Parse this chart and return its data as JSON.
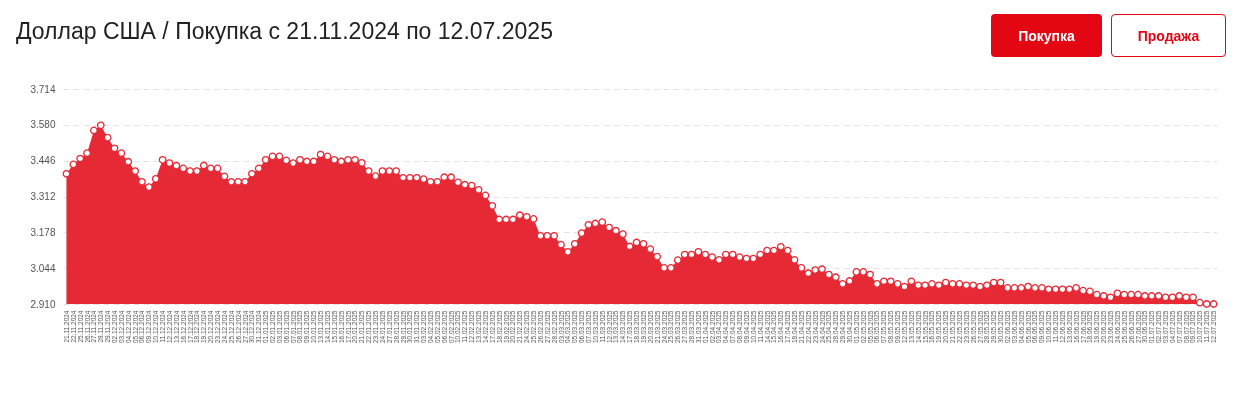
{
  "chart_data": {
    "type": "area",
    "title": "Доллар США / Покупка с 21.11.2024 по 12.07.2025",
    "annotations": [
      "Покупка",
      "Продажа"
    ],
    "categories": [
      "21.11.2024",
      "22.11.2024",
      "25.11.2024",
      "26.11.2024",
      "27.11.2024",
      "28.11.2024",
      "29.11.2024",
      "02.12.2024",
      "03.12.2024",
      "04.12.2024",
      "05.12.2024",
      "06.12.2024",
      "09.12.2024",
      "10.12.2024",
      "11.12.2024",
      "12.12.2024",
      "13.12.2024",
      "16.12.2024",
      "17.12.2024",
      "18.12.2024",
      "19.12.2024",
      "20.12.2024",
      "23.12.2024",
      "24.12.2024",
      "25.12.2024",
      "26.12.2024",
      "27.12.2024",
      "30.12.2024",
      "31.12.2024",
      "01.01.2025",
      "02.01.2025",
      "03.01.2025",
      "06.01.2025",
      "07.01.2025",
      "08.01.2025",
      "09.01.2025",
      "10.01.2025",
      "13.01.2025",
      "14.01.2025",
      "15.01.2025",
      "16.01.2025",
      "17.01.2025",
      "20.01.2025",
      "21.01.2025",
      "22.01.2025",
      "23.01.2025",
      "24.01.2025",
      "27.01.2025",
      "28.01.2025",
      "29.01.2025",
      "30.01.2025",
      "31.01.2025",
      "03.02.2025",
      "04.02.2025",
      "05.02.2025",
      "06.02.2025",
      "07.02.2025",
      "10.02.2025",
      "11.02.2025",
      "12.02.2025",
      "13.02.2025",
      "14.02.2025",
      "17.02.2025",
      "18.02.2025",
      "19.02.2025",
      "20.02.2025",
      "21.02.2025",
      "24.02.2025",
      "25.02.2025",
      "26.02.2025",
      "27.02.2025",
      "28.02.2025",
      "03.03.2025",
      "04.03.2025",
      "05.03.2025",
      "06.03.2025",
      "07.03.2025",
      "10.03.2025",
      "11.03.2025",
      "12.03.2025",
      "13.03.2025",
      "14.03.2025",
      "17.03.2025",
      "18.03.2025",
      "19.03.2025",
      "20.03.2025",
      "21.03.2025",
      "24.03.2025",
      "25.03.2025",
      "26.03.2025",
      "27.03.2025",
      "28.03.2025",
      "31.03.2025",
      "01.04.2025",
      "02.04.2025",
      "03.04.2025",
      "04.04.2025",
      "07.04.2025",
      "08.04.2025",
      "09.04.2025",
      "10.04.2025",
      "11.04.2025",
      "14.04.2025",
      "15.04.2025",
      "16.04.2025",
      "17.04.2025",
      "18.04.2025",
      "21.04.2025",
      "22.04.2025",
      "23.04.2025",
      "24.04.2025",
      "25.04.2025",
      "28.04.2025",
      "29.04.2025",
      "30.04.2025",
      "01.05.2025",
      "02.05.2025",
      "05.05.2025",
      "06.05.2025",
      "07.05.2025",
      "08.05.2025",
      "09.05.2025",
      "12.05.2025",
      "13.05.2025",
      "14.05.2025",
      "15.05.2025",
      "16.05.2025",
      "19.05.2025",
      "20.05.2025",
      "21.05.2025",
      "22.05.2025",
      "23.05.2025",
      "26.05.2025",
      "27.05.2025",
      "28.05.2025",
      "29.05.2025",
      "30.05.2025",
      "02.06.2025",
      "03.06.2025",
      "04.06.2025",
      "05.06.2025",
      "06.06.2025",
      "09.06.2025",
      "10.06.2025",
      "11.06.2025",
      "12.06.2025",
      "13.06.2025",
      "16.06.2025",
      "17.06.2025",
      "18.06.2025",
      "19.06.2025",
      "20.06.2025",
      "23.06.2025",
      "24.06.2025",
      "25.06.2025",
      "26.06.2025",
      "27.06.2025",
      "30.06.2025",
      "01.07.2025",
      "02.07.2025",
      "03.07.2025",
      "04.07.2025",
      "07.07.2025",
      "08.07.2025",
      "09.07.2025",
      "10.07.2025",
      "11.07.2025",
      "12.07.2025"
    ],
    "series": [
      {
        "color": "#e52935",
        "values": [
          3.397,
          3.432,
          3.454,
          3.474,
          3.559,
          3.578,
          3.532,
          3.492,
          3.474,
          3.442,
          3.407,
          3.367,
          3.347,
          3.378,
          3.449,
          3.437,
          3.427,
          3.417,
          3.407,
          3.407,
          3.428,
          3.417,
          3.417,
          3.387,
          3.367,
          3.367,
          3.367,
          3.397,
          3.417,
          3.449,
          3.462,
          3.462,
          3.447,
          3.437,
          3.449,
          3.443,
          3.443,
          3.469,
          3.462,
          3.449,
          3.443,
          3.449,
          3.449,
          3.438,
          3.407,
          3.388,
          3.407,
          3.407,
          3.407,
          3.382,
          3.382,
          3.382,
          3.377,
          3.367,
          3.367,
          3.384,
          3.384,
          3.365,
          3.356,
          3.353,
          3.337,
          3.316,
          3.277,
          3.226,
          3.226,
          3.226,
          3.242,
          3.236,
          3.228,
          3.165,
          3.165,
          3.165,
          3.132,
          3.105,
          3.135,
          3.175,
          3.206,
          3.211,
          3.216,
          3.196,
          3.184,
          3.171,
          3.125,
          3.14,
          3.135,
          3.115,
          3.087,
          3.045,
          3.045,
          3.074,
          3.095,
          3.095,
          3.105,
          3.095,
          3.085,
          3.075,
          3.095,
          3.095,
          3.085,
          3.08,
          3.08,
          3.095,
          3.11,
          3.11,
          3.124,
          3.11,
          3.075,
          3.045,
          3.025,
          3.037,
          3.04,
          3.02,
          3.01,
          2.985,
          2.996,
          3.03,
          3.03,
          3.02,
          2.985,
          2.995,
          2.995,
          2.985,
          2.975,
          2.995,
          2.98,
          2.98,
          2.985,
          2.98,
          2.99,
          2.985,
          2.985,
          2.98,
          2.98,
          2.975,
          2.98,
          2.99,
          2.99,
          2.97,
          2.97,
          2.97,
          2.975,
          2.97,
          2.97,
          2.965,
          2.965,
          2.965,
          2.965,
          2.97,
          2.96,
          2.957,
          2.945,
          2.94,
          2.935,
          2.95,
          2.945,
          2.945,
          2.945,
          2.94,
          2.94,
          2.94,
          2.935,
          2.935,
          2.94,
          2.935,
          2.935,
          2.915,
          2.91,
          2.91
        ]
      }
    ],
    "ylim": [
      2.91,
      3.714
    ],
    "yticks": [
      {
        "value": 2.91,
        "label": "2.910"
      },
      3.044,
      3.178,
      3.312,
      3.446,
      {
        "value": 3.58,
        "label": "3.580"
      },
      3.714
    ],
    "grid": "y",
    "marker": "circle"
  }
}
